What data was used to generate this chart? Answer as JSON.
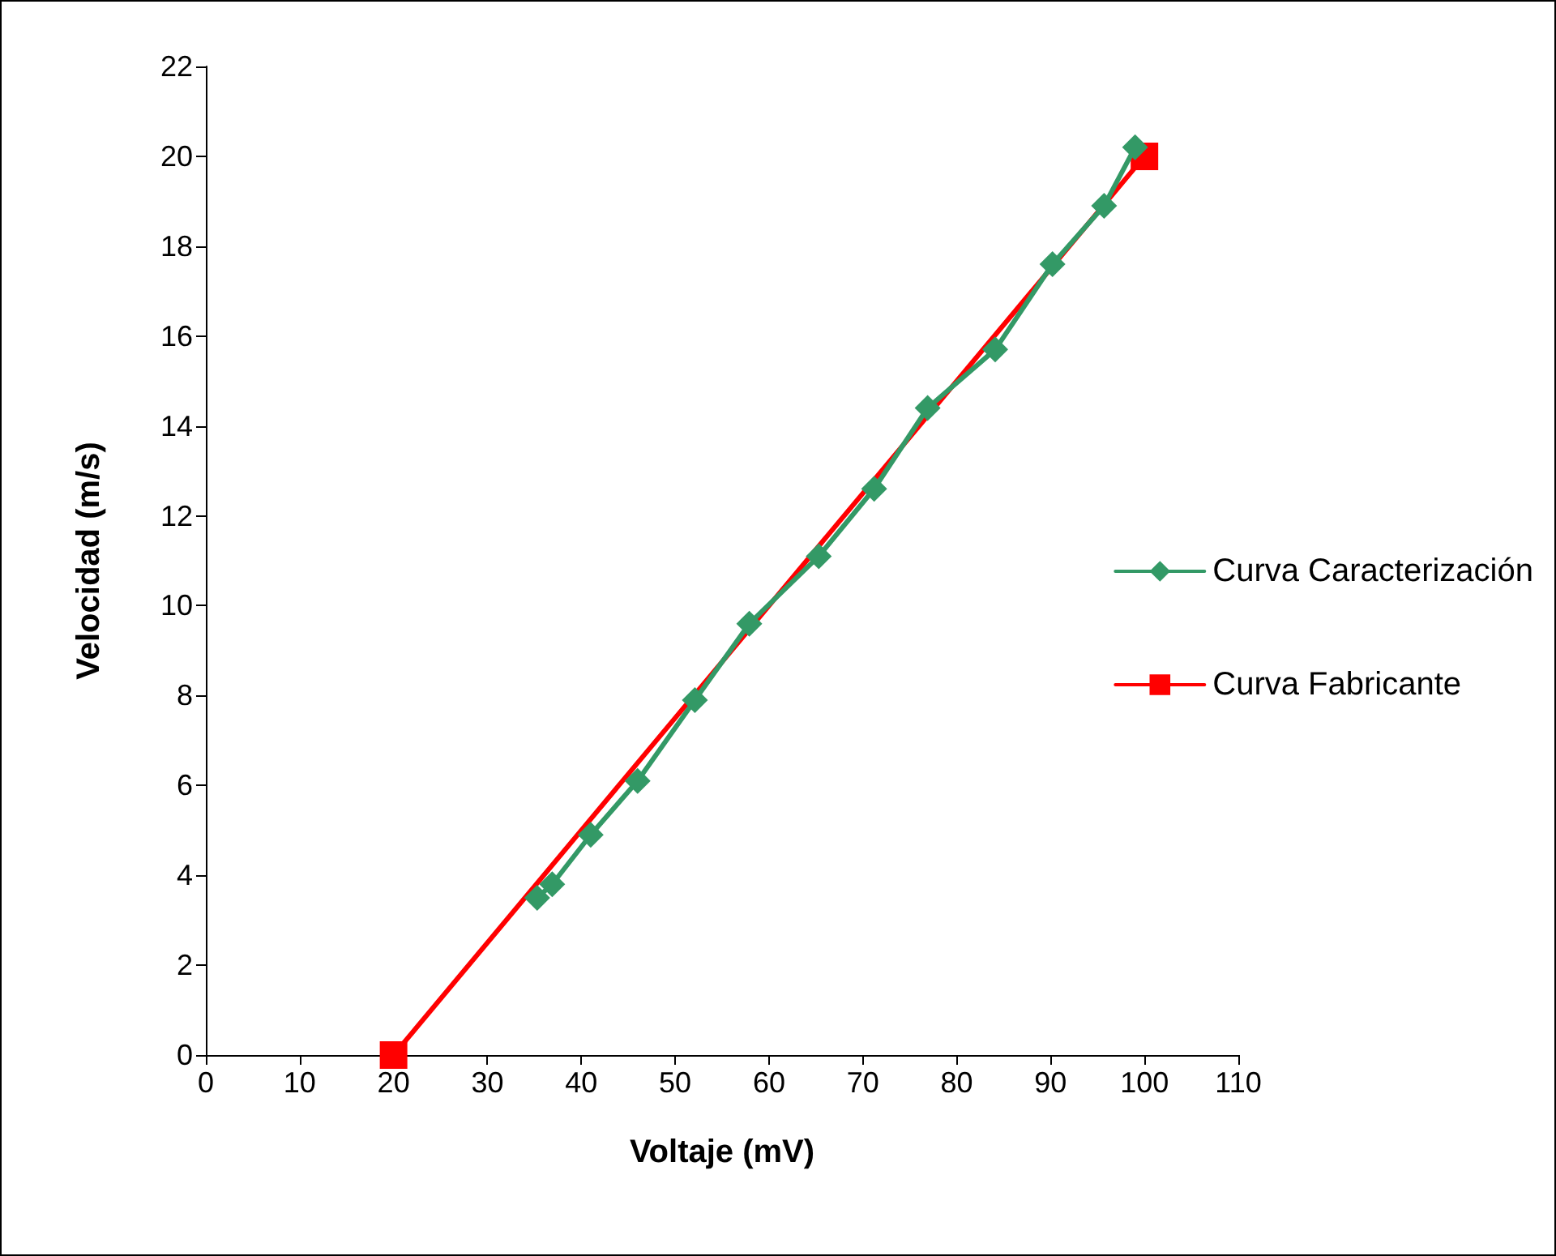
{
  "chart_data": {
    "type": "line",
    "xlabel": "Voltaje (mV)",
    "ylabel": "Velocidad (m/s)",
    "xlim": [
      0,
      110
    ],
    "xticks": [
      0,
      10,
      20,
      30,
      40,
      50,
      60,
      70,
      80,
      90,
      100,
      110
    ],
    "ylim": [
      0,
      22
    ],
    "yticks": [
      0,
      2,
      4,
      6,
      8,
      10,
      12,
      14,
      16,
      18,
      20,
      22
    ],
    "grid": false,
    "legend": "right",
    "series": [
      {
        "name": "Curva Caracterización",
        "color": "#339966",
        "marker": "diamond",
        "x": [
          35.3,
          36.9,
          41.0,
          46.0,
          52.1,
          57.9,
          65.3,
          71.2,
          76.9,
          84.1,
          90.2,
          95.7,
          99.0
        ],
        "values": [
          3.5,
          3.8,
          4.9,
          6.1,
          7.9,
          9.6,
          11.1,
          12.6,
          14.4,
          15.7,
          17.6,
          18.9,
          20.2
        ]
      },
      {
        "name": "Curva Fabricante",
        "color": "#ff0000",
        "marker": "square",
        "x": [
          20,
          100
        ],
        "values": [
          0,
          20
        ]
      }
    ]
  }
}
